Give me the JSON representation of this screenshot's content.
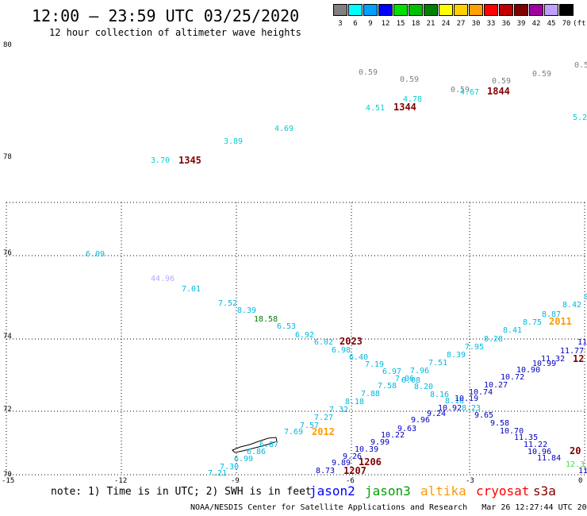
{
  "header": {
    "title": "12:00 — 23:59 UTC 03/25/2020",
    "subtitle": "12 hour collection of altimeter wave heights"
  },
  "legend": {
    "swatches": [
      {
        "color": "#808080",
        "label": "3"
      },
      {
        "color": "#00ffff",
        "label": "6"
      },
      {
        "color": "#00a0ff",
        "label": "9"
      },
      {
        "color": "#0000ff",
        "label": "12"
      },
      {
        "color": "#00e000",
        "label": "15"
      },
      {
        "color": "#00c000",
        "label": "18"
      },
      {
        "color": "#008000",
        "label": "21"
      },
      {
        "color": "#ffff00",
        "label": "24"
      },
      {
        "color": "#ffd000",
        "label": "27"
      },
      {
        "color": "#ffa000",
        "label": "30"
      },
      {
        "color": "#ff0000",
        "label": "33"
      },
      {
        "color": "#c00000",
        "label": "36"
      },
      {
        "color": "#800000",
        "label": "39"
      },
      {
        "color": "#a000a0",
        "label": "42"
      },
      {
        "color": "#c0a0ff",
        "label": "45"
      },
      {
        "color": "#000000",
        "label": "70"
      }
    ],
    "unit": "(ft)"
  },
  "axes": {
    "lat_labels": [
      "80",
      "78",
      "76",
      "74",
      "72",
      "70"
    ],
    "lon_labels": [
      "-15",
      "-12",
      "-9",
      "-6",
      "-3",
      "0"
    ]
  },
  "observations": [
    {
      "t": "0.59",
      "c": "#808080"
    },
    {
      "t": "0.59",
      "c": "#808080"
    },
    {
      "t": "0.59",
      "c": "#808080"
    },
    {
      "t": "0.59",
      "c": "#808080"
    },
    {
      "t": "0.59",
      "c": "#808080"
    },
    {
      "t": "0.5",
      "c": "#808080"
    },
    {
      "t": "4.78",
      "c": "#00d0d0"
    },
    {
      "t": "4.51",
      "c": "#00d0d0"
    },
    {
      "t": "4.67",
      "c": "#00d0d0"
    },
    {
      "t": "5.2",
      "c": "#00d0d0"
    },
    {
      "t": "4.69",
      "c": "#00d0d0"
    },
    {
      "t": "3.89",
      "c": "#00d0d0"
    },
    {
      "t": "3.70",
      "c": "#00d0d0"
    },
    {
      "t": "6.09",
      "c": "#00b8e0"
    },
    {
      "t": "44.96",
      "c": "#b8a8ff"
    },
    {
      "t": "7.01",
      "c": "#00b8e0"
    },
    {
      "t": "7.52",
      "c": "#00b8e0"
    },
    {
      "t": "8.39",
      "c": "#00b8e0"
    },
    {
      "t": "18.58",
      "c": "#008000"
    },
    {
      "t": "6.53",
      "c": "#00b8e0"
    },
    {
      "t": "6.92",
      "c": "#00b8e0"
    },
    {
      "t": "6.02",
      "c": "#00b8e0"
    },
    {
      "t": "6.98",
      "c": "#00b8e0"
    },
    {
      "t": "6.40",
      "c": "#00b8e0"
    },
    {
      "t": "7.19",
      "c": "#00b8e0"
    },
    {
      "t": "6.97",
      "c": "#00b8e0"
    },
    {
      "t": "7.06",
      "c": "#00b8e0"
    },
    {
      "t": "6.08",
      "c": "#00b8e0"
    },
    {
      "t": "8.20",
      "c": "#00b8e0"
    },
    {
      "t": "8.16",
      "c": "#00b8e0"
    },
    {
      "t": "8.16",
      "c": "#00b8e0"
    },
    {
      "t": "8.23",
      "c": "#00b8e0"
    },
    {
      "t": "8.8",
      "c": "#00b8e0"
    },
    {
      "t": "8.42",
      "c": "#00b8e0"
    },
    {
      "t": "8.87",
      "c": "#00b8e0"
    },
    {
      "t": "8.75",
      "c": "#00b8e0"
    },
    {
      "t": "8.41",
      "c": "#00b8e0"
    },
    {
      "t": "8.28",
      "c": "#00b8e0"
    },
    {
      "t": "7.95",
      "c": "#00b8e0"
    },
    {
      "t": "8.39",
      "c": "#00b8e0"
    },
    {
      "t": "7.51",
      "c": "#00b8e0"
    },
    {
      "t": "7.96",
      "c": "#00b8e0"
    },
    {
      "t": "7.58",
      "c": "#00b8e0"
    },
    {
      "t": "7.88",
      "c": "#00b8e0"
    },
    {
      "t": "8.18",
      "c": "#00b8e0"
    },
    {
      "t": "7.32",
      "c": "#00b8e0"
    },
    {
      "t": "7.27",
      "c": "#00b8e0"
    },
    {
      "t": "7.57",
      "c": "#00b8e0"
    },
    {
      "t": "7.69",
      "c": "#00b8e0"
    },
    {
      "t": "6.87",
      "c": "#00b8e0"
    },
    {
      "t": "6.86",
      "c": "#00b8e0"
    },
    {
      "t": "6.99",
      "c": "#00b8e0"
    },
    {
      "t": "7.30",
      "c": "#00b8e0"
    },
    {
      "t": "7.21",
      "c": "#00b8e0"
    },
    {
      "t": "11",
      "c": "#0000c0"
    },
    {
      "t": "11.77",
      "c": "#0000c0"
    },
    {
      "t": "11.32",
      "c": "#0000c0"
    },
    {
      "t": "10.99",
      "c": "#0000c0"
    },
    {
      "t": "10.90",
      "c": "#0000c0"
    },
    {
      "t": "10.72",
      "c": "#0000c0"
    },
    {
      "t": "10.27",
      "c": "#0000c0"
    },
    {
      "t": "10.74",
      "c": "#0000c0"
    },
    {
      "t": "10.19",
      "c": "#0000c0"
    },
    {
      "t": "10.92",
      "c": "#0000c0"
    },
    {
      "t": "9.24",
      "c": "#0000c0"
    },
    {
      "t": "9.96",
      "c": "#0000c0"
    },
    {
      "t": "9.63",
      "c": "#0000c0"
    },
    {
      "t": "10.22",
      "c": "#0000c0"
    },
    {
      "t": "9.99",
      "c": "#0000c0"
    },
    {
      "t": "10.39",
      "c": "#0000c0"
    },
    {
      "t": "9.26",
      "c": "#0000c0"
    },
    {
      "t": "9.89",
      "c": "#0000c0"
    },
    {
      "t": "8.73",
      "c": "#0000c0"
    },
    {
      "t": "9.65",
      "c": "#0000c0"
    },
    {
      "t": "9.58",
      "c": "#0000c0"
    },
    {
      "t": "10.70",
      "c": "#0000c0"
    },
    {
      "t": "11.35",
      "c": "#0000c0"
    },
    {
      "t": "11.22",
      "c": "#0000c0"
    },
    {
      "t": "10.96",
      "c": "#0000c0"
    },
    {
      "t": "11.84",
      "c": "#0000c0"
    },
    {
      "t": "12.3",
      "c": "#40e040"
    },
    {
      "t": "11",
      "c": "#0000c0"
    }
  ],
  "time_labels": [
    {
      "t": "1344",
      "c": "#800000"
    },
    {
      "t": "1844",
      "c": "#800000"
    },
    {
      "t": "1345",
      "c": "#800000"
    },
    {
      "t": "2023",
      "c": "#800000"
    },
    {
      "t": "2011",
      "c": "#ff9900"
    },
    {
      "t": "2012",
      "c": "#ff9900"
    },
    {
      "t": "12",
      "c": "#800000"
    },
    {
      "t": "1206",
      "c": "#800000"
    },
    {
      "t": "1207",
      "c": "#800000"
    },
    {
      "t": "20",
      "c": "#800000"
    }
  ],
  "footer": {
    "note": "note: 1) Time is in UTC; 2) SWH is in feet",
    "satellites": [
      {
        "name": "jason2",
        "color": "#0000ff"
      },
      {
        "name": "jason3",
        "color": "#00a000"
      },
      {
        "name": "altika",
        "color": "#ff9900"
      },
      {
        "name": "cryosat",
        "color": "#ff0000"
      },
      {
        "name": "s3a",
        "color": "#800000"
      }
    ],
    "credit": "NOAA/NESDIS Center for Satellite Applications and Research   Mar 26 12:27:44 UTC 2020"
  }
}
